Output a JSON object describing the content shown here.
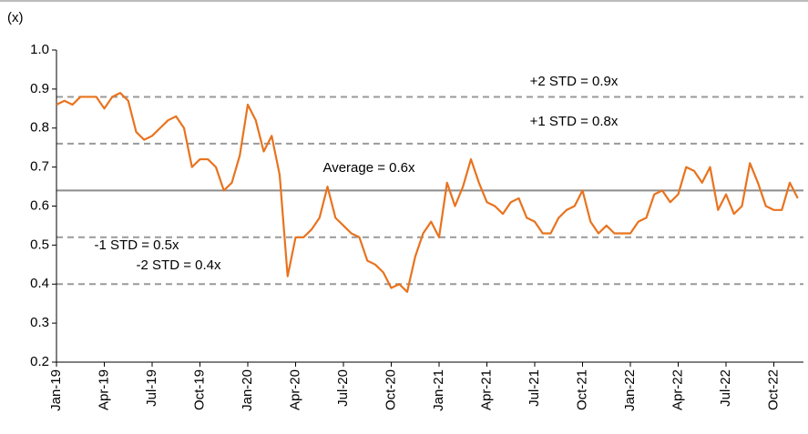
{
  "chart_data": {
    "type": "line",
    "y_axis_label": "(x)",
    "categories": [
      "Jan-19",
      null,
      null,
      null,
      null,
      null,
      "Apr-19",
      null,
      null,
      null,
      null,
      null,
      "Jul-19",
      null,
      null,
      null,
      null,
      null,
      "Oct-19",
      null,
      null,
      null,
      null,
      null,
      "Jan-20",
      null,
      null,
      null,
      null,
      null,
      "Apr-20",
      null,
      null,
      null,
      null,
      null,
      "Jul-20",
      null,
      null,
      null,
      null,
      null,
      "Oct-20",
      null,
      null,
      null,
      null,
      null,
      "Jan-21",
      null,
      null,
      null,
      null,
      null,
      "Apr-21",
      null,
      null,
      null,
      null,
      null,
      "Jul-21",
      null,
      null,
      null,
      null,
      null,
      "Oct-21",
      null,
      null,
      null,
      null,
      null,
      "Jan-22",
      null,
      null,
      null,
      null,
      null,
      "Apr-22",
      null,
      null,
      null,
      null,
      null,
      "Jul-22",
      null,
      null,
      null,
      null,
      null,
      "Oct-22",
      null,
      null,
      null
    ],
    "series": [
      {
        "color": "#e8731f",
        "values": [
          0.86,
          0.87,
          0.86,
          0.88,
          0.88,
          0.88,
          0.85,
          0.88,
          0.89,
          0.87,
          0.79,
          0.77,
          0.78,
          0.8,
          0.82,
          0.83,
          0.8,
          0.7,
          0.72,
          0.72,
          0.7,
          0.64,
          0.66,
          0.73,
          0.86,
          0.82,
          0.74,
          0.78,
          0.68,
          0.42,
          0.52,
          0.52,
          0.54,
          0.57,
          0.65,
          0.57,
          0.55,
          0.53,
          0.52,
          0.46,
          0.45,
          0.43,
          0.39,
          0.4,
          0.38,
          0.47,
          0.53,
          0.56,
          0.52,
          0.66,
          0.6,
          0.65,
          0.72,
          0.66,
          0.61,
          0.6,
          0.58,
          0.61,
          0.62,
          0.57,
          0.56,
          0.53,
          0.53,
          0.57,
          0.59,
          0.6,
          0.64,
          0.56,
          0.53,
          0.55,
          0.53,
          0.53,
          0.53,
          0.56,
          0.57,
          0.63,
          0.64,
          0.61,
          0.63,
          0.7,
          0.69,
          0.66,
          0.7,
          0.59,
          0.63,
          0.58,
          0.6,
          0.71,
          0.66,
          0.6,
          0.59,
          0.59,
          0.66,
          0.62
        ]
      }
    ],
    "reference_lines": [
      {
        "label": "+2 STD = 0.9x",
        "value": 0.88,
        "style": "dashed",
        "color": "#9a9a9a"
      },
      {
        "label": "+1 STD = 0.8x",
        "value": 0.76,
        "style": "dashed",
        "color": "#9a9a9a"
      },
      {
        "label": "Average = 0.6x",
        "value": 0.64,
        "style": "solid",
        "color": "#8c8c8c"
      },
      {
        "label": "-1 STD = 0.5x",
        "value": 0.52,
        "style": "dashed",
        "color": "#9a9a9a"
      },
      {
        "label": "-2 STD = 0.4x",
        "value": 0.4,
        "style": "dashed",
        "color": "#9a9a9a"
      }
    ],
    "ylim": [
      0.2,
      1.0
    ],
    "yticks": [
      0.2,
      0.3,
      0.4,
      0.5,
      0.6,
      0.7,
      0.8,
      0.9,
      {
        "value": 1.0,
        "label": "1.0"
      }
    ]
  }
}
